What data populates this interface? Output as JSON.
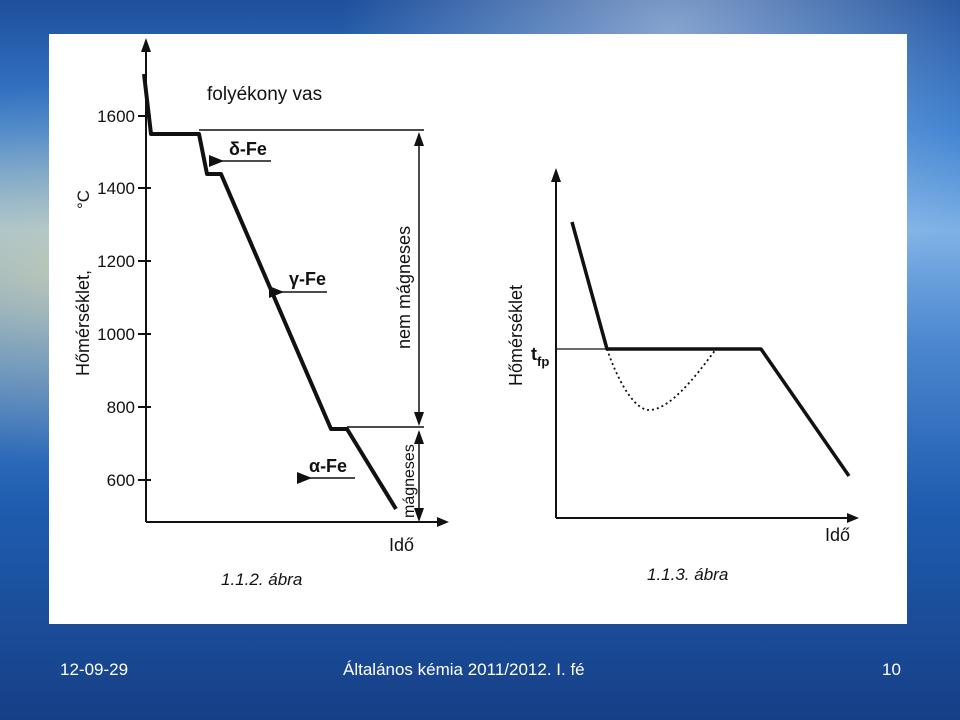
{
  "diagram_left": {
    "y_ticks": [
      "1600",
      "1400",
      "1200",
      "1000",
      "800",
      "600"
    ],
    "y_axis_label": "Hőmérséklet,",
    "y_unit": "°C",
    "x_axis_label": "Idő",
    "liquid_label": "folyékony vas",
    "delta_label": "δ-Fe",
    "gamma_label": "γ-Fe",
    "alpha_label": "α-Fe",
    "nonmagnetic_label": "nem mágneses",
    "magnetic_label": "mágneses",
    "caption": "1.1.2. ábra"
  },
  "diagram_right": {
    "y_axis_label": "Hőmérséklet",
    "t_label": "t",
    "t_sub": "fp",
    "x_axis_label": "Idő",
    "caption": "1.1.3. ábra"
  },
  "footer": {
    "date": "12-09-29",
    "course": "Általános kémia 2011/2012. I. fé",
    "page": "10"
  }
}
